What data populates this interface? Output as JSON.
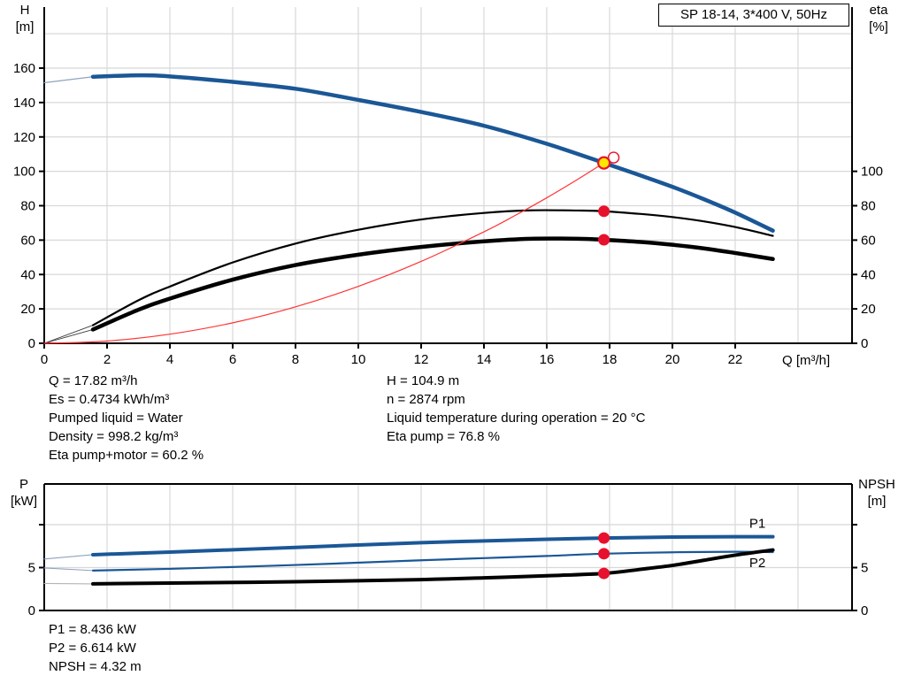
{
  "header": {
    "title_box": "SP 18-14, 3*400 V, 50Hz"
  },
  "colors": {
    "blue": "#1B5796",
    "black": "#000000",
    "curve_red": "#FF3333",
    "marker_red": "#E8112D",
    "op_yellow": "#FFE600",
    "grid": "#D8D8D8",
    "axis": "#000000",
    "lead_blue": "#8FA3BE",
    "lead_gray": "#B4B4B4",
    "lead_dark": "#3C3C3C"
  },
  "axis_corner_labels": {
    "top_left": {
      "line1": "H",
      "line2": "[m]"
    },
    "top_right": {
      "line1": "eta",
      "line2": "[%]"
    },
    "bottom_left": {
      "line1": "P",
      "line2": "[kW]"
    },
    "bottom_right": {
      "line1": "NPSH",
      "line2": "[m]"
    }
  },
  "x_axis_label": "Q [m³/h]",
  "info_top": {
    "col1": [
      "Q = 17.82 m³/h",
      "Es = 0.4734 kWh/m³",
      "Pumped liquid = Water",
      "Density = 998.2 kg/m³",
      "Eta pump+motor = 60.2 %"
    ],
    "col2": [
      "H = 104.9 m",
      "n = 2874 rpm",
      "Liquid temperature during operation = 20 °C",
      "Eta pump = 76.8 %"
    ]
  },
  "info_bottom": [
    "P1 = 8.436 kW",
    "P2 = 6.614 kW",
    "NPSH = 4.32 m"
  ],
  "operating_point": {
    "Q": 17.82,
    "H": 104.9,
    "eta_pump": 76.8,
    "eta_pump_motor": 60.2,
    "P1": 8.436,
    "P2": 6.614,
    "NPSH": 4.32
  },
  "chart_data": [
    {
      "type": "line",
      "name": "h-q-chart",
      "title": "SP 18-14, 3*400 V, 50Hz",
      "x": {
        "label": "Q [m³/h]",
        "min": 0,
        "max": 25.72,
        "ticks": [
          0,
          2,
          4,
          6,
          8,
          10,
          12,
          14,
          16,
          18,
          20,
          22
        ],
        "grid": [
          2,
          4,
          6,
          8,
          10,
          12,
          14,
          16,
          18,
          20,
          22,
          24
        ]
      },
      "y_left": {
        "name": "H [m]",
        "min": 0,
        "max": 195.5,
        "ticks": [
          0,
          20,
          40,
          60,
          80,
          100,
          120,
          140,
          160
        ],
        "ticks_unlabeled": [],
        "grid": [
          20,
          40,
          60,
          80,
          100,
          120,
          140,
          160,
          180
        ]
      },
      "y_right": {
        "name": "eta [%]",
        "min": 0,
        "max": 195.5,
        "ticks": [
          0,
          20,
          40,
          60,
          80,
          100
        ],
        "ticks_unlabeled": []
      },
      "frame_top": false,
      "series": [
        {
          "name": "head-lead",
          "axis": "left",
          "color_key": "lead_blue",
          "width": 1.2,
          "points": [
            [
              0,
              151.5
            ],
            [
              1.55,
              155
            ]
          ]
        },
        {
          "name": "head",
          "axis": "left",
          "color_key": "blue",
          "width": 4.5,
          "points": [
            [
              1.55,
              155
            ],
            [
              3,
              155.8
            ],
            [
              4,
              155.2
            ],
            [
              6,
              152
            ],
            [
              8,
              148
            ],
            [
              10,
              141.5
            ],
            [
              12,
              134.5
            ],
            [
              14,
              126.5
            ],
            [
              16,
              116
            ],
            [
              17.82,
              104.9
            ],
            [
              19,
              97.5
            ],
            [
              20,
              91
            ],
            [
              21,
              83.8
            ],
            [
              22,
              76
            ],
            [
              23.2,
              65.5
            ]
          ]
        },
        {
          "name": "eta-pump-lead",
          "axis": "right",
          "color_key": "lead_dark",
          "width": 0.9,
          "points": [
            [
              0,
              0
            ],
            [
              1.55,
              10.5
            ]
          ]
        },
        {
          "name": "eta-pump",
          "axis": "right",
          "color_key": "black",
          "width": 2.2,
          "points": [
            [
              1.55,
              10.5
            ],
            [
              3,
              25
            ],
            [
              4,
              33
            ],
            [
              6,
              47
            ],
            [
              8,
              58
            ],
            [
              10,
              66
            ],
            [
              12,
              72
            ],
            [
              14,
              75.8
            ],
            [
              15.5,
              77.3
            ],
            [
              17,
              77.2
            ],
            [
              17.82,
              76.8
            ],
            [
              19,
              75.2
            ],
            [
              20,
              73.4
            ],
            [
              21,
              70.9
            ],
            [
              22,
              67.6
            ],
            [
              23.2,
              62.5
            ]
          ]
        },
        {
          "name": "eta-pump-motor-lead",
          "axis": "right",
          "color_key": "lead_dark",
          "width": 0.9,
          "points": [
            [
              0,
              0
            ],
            [
              1.55,
              8
            ]
          ]
        },
        {
          "name": "eta-pump-motor",
          "axis": "right",
          "color_key": "black",
          "width": 4.5,
          "points": [
            [
              1.55,
              8
            ],
            [
              3,
              19.5
            ],
            [
              4,
              26
            ],
            [
              6,
              37
            ],
            [
              8,
              45.5
            ],
            [
              10,
              51.5
            ],
            [
              12,
              56
            ],
            [
              14,
              59.3
            ],
            [
              15.5,
              60.8
            ],
            [
              17,
              60.8
            ],
            [
              17.82,
              60.2
            ],
            [
              19,
              58.9
            ],
            [
              20,
              57.3
            ],
            [
              21,
              55.2
            ],
            [
              22,
              52.5
            ],
            [
              23.2,
              49
            ]
          ]
        },
        {
          "name": "system-curve",
          "axis": "left",
          "color_key": "curve_red",
          "width": 1.2,
          "points": [
            [
              0,
              0
            ],
            [
              2,
              1.3
            ],
            [
              4,
              5.3
            ],
            [
              6,
              11.9
            ],
            [
              8,
              21.2
            ],
            [
              10,
              33.1
            ],
            [
              12,
              47.6
            ],
            [
              14,
              64.8
            ],
            [
              15,
              74.4
            ],
            [
              16,
              84.6
            ],
            [
              17,
              95.5
            ],
            [
              17.82,
              104.9
            ]
          ]
        }
      ],
      "markers": [
        {
          "name": "system-curve-end-ring",
          "axis": "left",
          "x": 18.13,
          "y": 108.0,
          "type": "ring"
        },
        {
          "name": "duty-point",
          "axis": "left",
          "x": 17.82,
          "y": 104.9,
          "type": "op"
        },
        {
          "name": "eta-pump-point",
          "axis": "right",
          "x": 17.82,
          "y": 76.8,
          "type": "dot"
        },
        {
          "name": "eta-pump-motor-point",
          "axis": "right",
          "x": 17.82,
          "y": 60.2,
          "type": "dot"
        }
      ],
      "annotations": []
    },
    {
      "type": "line",
      "name": "power-npsh-chart",
      "x": {
        "min": 0,
        "max": 25.72,
        "ticks": [],
        "grid": [
          2,
          4,
          6,
          8,
          10,
          12,
          14,
          16,
          18,
          20,
          22,
          24
        ]
      },
      "y_left": {
        "name": "P [kW]",
        "min": 0,
        "max": 14.74,
        "ticks": [
          0,
          5
        ],
        "ticks_unlabeled": [
          10
        ],
        "grid": [
          5,
          10
        ]
      },
      "y_right": {
        "name": "NPSH [m]",
        "min": 0,
        "max": 14.74,
        "ticks": [
          0,
          5
        ],
        "ticks_unlabeled": [
          10
        ]
      },
      "frame_top": true,
      "series": [
        {
          "name": "p1-lead",
          "axis": "left",
          "color_key": "lead_blue",
          "width": 1.1,
          "points": [
            [
              0,
              6.0
            ],
            [
              1.55,
              6.5
            ]
          ]
        },
        {
          "name": "p1",
          "axis": "left",
          "color_key": "blue",
          "width": 4,
          "points": [
            [
              1.55,
              6.5
            ],
            [
              4,
              6.8
            ],
            [
              8,
              7.35
            ],
            [
              12,
              7.9
            ],
            [
              14,
              8.1
            ],
            [
              16,
              8.3
            ],
            [
              17.82,
              8.436
            ],
            [
              20,
              8.55
            ],
            [
              22,
              8.6
            ],
            [
              23.2,
              8.6
            ]
          ]
        },
        {
          "name": "p2-lead",
          "axis": "left",
          "color_key": "lead_blue",
          "width": 1.1,
          "points": [
            [
              0,
              4.95
            ],
            [
              1.55,
              4.65
            ]
          ]
        },
        {
          "name": "p2",
          "axis": "left",
          "color_key": "blue",
          "width": 2.2,
          "points": [
            [
              1.55,
              4.65
            ],
            [
              4,
              4.85
            ],
            [
              8,
              5.3
            ],
            [
              12,
              5.85
            ],
            [
              14,
              6.1
            ],
            [
              16,
              6.35
            ],
            [
              17.82,
              6.614
            ],
            [
              20,
              6.78
            ],
            [
              22,
              6.84
            ],
            [
              23.2,
              6.8
            ]
          ]
        },
        {
          "name": "npsh-lead",
          "axis": "right",
          "color_key": "lead_gray",
          "width": 1.1,
          "points": [
            [
              0,
              3.15
            ],
            [
              1.55,
              3.1
            ]
          ]
        },
        {
          "name": "npsh",
          "axis": "right",
          "color_key": "black",
          "width": 4,
          "points": [
            [
              1.55,
              3.1
            ],
            [
              4,
              3.2
            ],
            [
              8,
              3.35
            ],
            [
              12,
              3.6
            ],
            [
              14,
              3.8
            ],
            [
              16,
              4.05
            ],
            [
              17.82,
              4.32
            ],
            [
              19,
              4.8
            ],
            [
              20,
              5.25
            ],
            [
              21,
              5.85
            ],
            [
              22,
              6.45
            ],
            [
              23.2,
              7.05
            ]
          ]
        }
      ],
      "markers": [
        {
          "name": "p1-point",
          "axis": "left",
          "x": 17.82,
          "y": 8.436,
          "type": "dot"
        },
        {
          "name": "p2-point",
          "axis": "left",
          "x": 17.82,
          "y": 6.614,
          "type": "dot"
        },
        {
          "name": "npsh-point",
          "axis": "right",
          "x": 17.82,
          "y": 4.32,
          "type": "dot"
        }
      ],
      "annotations": [
        {
          "name": "p1-label",
          "text": "P1",
          "x": 22.45,
          "y": 10.15,
          "color_key": "blue"
        },
        {
          "name": "p2-label",
          "text": "P2",
          "x": 22.45,
          "y": 5.55,
          "color_key": "blue"
        }
      ]
    }
  ]
}
